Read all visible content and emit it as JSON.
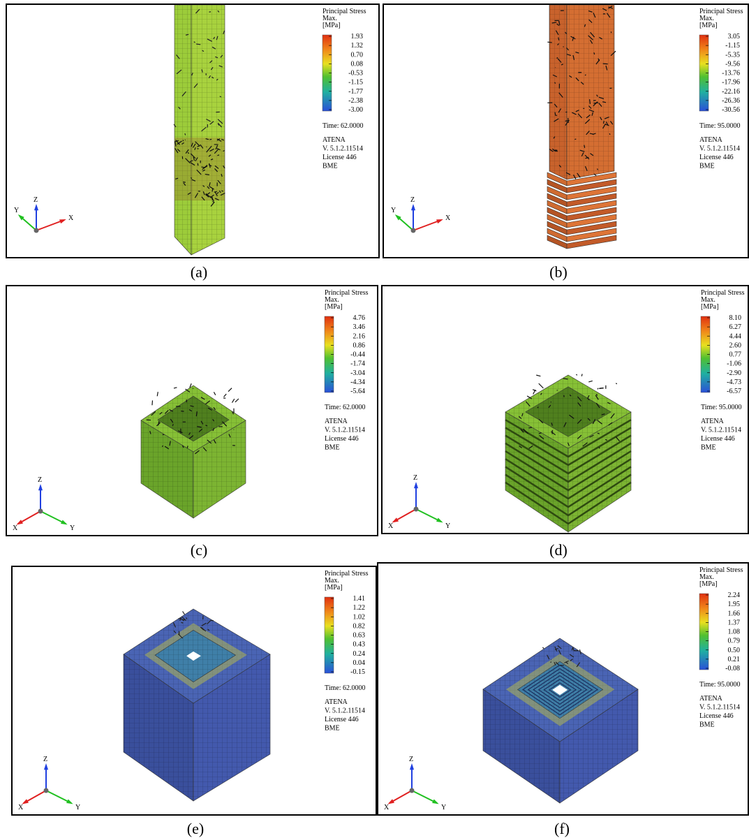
{
  "panels": [
    {
      "caption": "(a)",
      "legend": {
        "title": "Principal Stress",
        "subtitle": "Max.",
        "unit": "[MPa]",
        "values": [
          "1.93",
          "1.32",
          "0.70",
          "0.08",
          "-0.53",
          "-1.15",
          "-1.77",
          "-2.38",
          "-3.00"
        ]
      },
      "time": "Time:  62.0000",
      "info": [
        "ATENA",
        "V. 5.1.2.11514",
        "License 446",
        "BME"
      ],
      "axes": {
        "x": "X",
        "y": "Y",
        "z": "Z"
      }
    },
    {
      "caption": "(b)",
      "legend": {
        "title": "Principal Stress",
        "subtitle": "Max.",
        "unit": "[MPa]",
        "values": [
          "3.05",
          "-1.15",
          "-5.35",
          "-9.56",
          "-13.76",
          "-17.96",
          "-22.16",
          "-26.36",
          "-30.56"
        ]
      },
      "time": "Time:  95.0000",
      "info": [
        "ATENA",
        "V. 5.1.2.11514",
        "License 446",
        "BME"
      ],
      "axes": {
        "x": "X",
        "y": "Y",
        "z": "Z"
      }
    },
    {
      "caption": "(c)",
      "legend": {
        "title": "Principal Stress",
        "subtitle": "Max.",
        "unit": "[MPa]",
        "values": [
          "4.76",
          "3.46",
          "2.16",
          "0.86",
          "-0.44",
          "-1.74",
          "-3.04",
          "-4.34",
          "-5.64"
        ]
      },
      "time": "Time:  62.0000",
      "info": [
        "ATENA",
        "V. 5.1.2.11514",
        "License 446",
        "BME"
      ],
      "axes": {
        "x": "X",
        "y": "Y",
        "z": "Z"
      }
    },
    {
      "caption": "(d)",
      "legend": {
        "title": "Principal Stress",
        "subtitle": "Max.",
        "unit": "[MPa]",
        "values": [
          "8.10",
          "6.27",
          "4.44",
          "2.60",
          "0.77",
          "-1.06",
          "-2.90",
          "-4.73",
          "-6.57"
        ]
      },
      "time": "Time:  95.0000",
      "info": [
        "ATENA",
        "V. 5.1.2.11514",
        "License 446",
        "BME"
      ],
      "axes": {
        "x": "X",
        "y": "Y",
        "z": "Z"
      }
    },
    {
      "caption": "(e)",
      "legend": {
        "title": "Principal Stress",
        "subtitle": "Max.",
        "unit": "[MPa]",
        "values": [
          "1.41",
          "1.22",
          "1.02",
          "0.82",
          "0.63",
          "0.43",
          "0.24",
          "0.04",
          "-0.15"
        ]
      },
      "time": "Time:  62.0000",
      "info": [
        "ATENA",
        "V. 5.1.2.11514",
        "License 446",
        "BME"
      ],
      "axes": {
        "x": "X",
        "y": "Y",
        "z": "Z"
      }
    },
    {
      "caption": "(f)",
      "legend": {
        "title": "Principal Stress",
        "subtitle": "Max.",
        "unit": "[MPa]",
        "values": [
          "2.24",
          "1.95",
          "1.66",
          "1.37",
          "1.08",
          "0.79",
          "0.50",
          "0.21",
          "-0.08"
        ]
      },
      "time": "Time:  95.0000",
      "info": [
        "ATENA",
        "V. 5.1.2.11514",
        "License 446",
        "BME"
      ],
      "axes": {
        "x": "X",
        "y": "Y",
        "z": "Z"
      }
    }
  ]
}
